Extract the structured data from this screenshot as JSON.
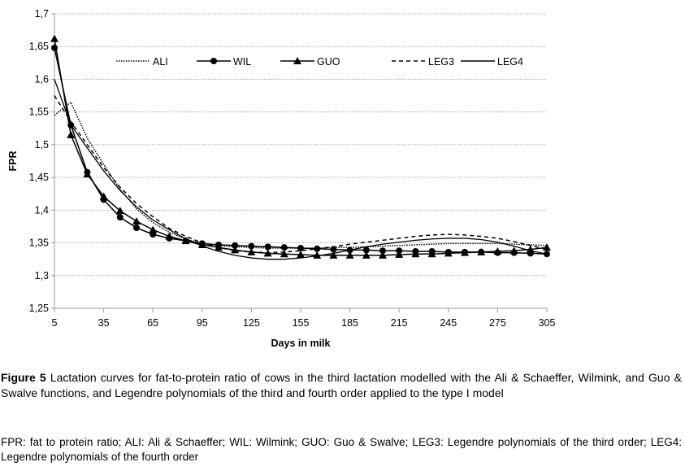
{
  "chart_data": {
    "type": "line",
    "xlabel": "Days in milk",
    "ylabel": "FPR",
    "xlim": [
      5,
      305
    ],
    "ylim": [
      1.25,
      1.7
    ],
    "x_ticks": [
      "5",
      "35",
      "65",
      "95",
      "125",
      "155",
      "185",
      "215",
      "245",
      "275",
      "305"
    ],
    "y_ticks": [
      "1,25",
      "1,3",
      "1,35",
      "1,4",
      "1,45",
      "1,5",
      "1,55",
      "1,6",
      "1,65",
      "1,7"
    ],
    "grid": "horizontal dotted",
    "legend_placement": "top",
    "x": [
      5,
      15,
      25,
      35,
      45,
      55,
      65,
      75,
      85,
      95,
      105,
      115,
      125,
      135,
      145,
      155,
      165,
      175,
      185,
      195,
      205,
      215,
      225,
      235,
      245,
      255,
      265,
      275,
      285,
      295,
      305
    ],
    "series": [
      {
        "name": "ALI",
        "style": "dotted",
        "marker": "none",
        "values": [
          1.545,
          1.565,
          1.51,
          1.47,
          1.432,
          1.402,
          1.381,
          1.366,
          1.356,
          1.349,
          1.346,
          1.344,
          1.343,
          1.342,
          1.342,
          1.342,
          1.342,
          1.343,
          1.343,
          1.344,
          1.345,
          1.346,
          1.347,
          1.348,
          1.349,
          1.349,
          1.349,
          1.349,
          1.348,
          1.347,
          1.346
        ]
      },
      {
        "name": "WIL",
        "style": "solid",
        "marker": "circle",
        "values": [
          1.648,
          1.53,
          1.458,
          1.416,
          1.389,
          1.373,
          1.363,
          1.357,
          1.353,
          1.349,
          1.347,
          1.346,
          1.345,
          1.344,
          1.343,
          1.342,
          1.341,
          1.34,
          1.339,
          1.339,
          1.338,
          1.338,
          1.337,
          1.337,
          1.336,
          1.336,
          1.336,
          1.335,
          1.335,
          1.334,
          1.333
        ]
      },
      {
        "name": "GUO",
        "style": "solid",
        "marker": "triangle",
        "values": [
          1.662,
          1.515,
          1.455,
          1.421,
          1.399,
          1.383,
          1.37,
          1.36,
          1.353,
          1.347,
          1.343,
          1.339,
          1.336,
          1.334,
          1.333,
          1.332,
          1.331,
          1.331,
          1.331,
          1.331,
          1.331,
          1.332,
          1.333,
          1.333,
          1.334,
          1.335,
          1.336,
          1.337,
          1.338,
          1.34,
          1.343
        ]
      },
      {
        "name": "LEG3",
        "style": "dashed",
        "marker": "none",
        "values": [
          1.575,
          1.535,
          1.5,
          1.465,
          1.435,
          1.41,
          1.39,
          1.372,
          1.36,
          1.35,
          1.343,
          1.338,
          1.336,
          1.335,
          1.336,
          1.338,
          1.341,
          1.344,
          1.348,
          1.351,
          1.354,
          1.357,
          1.36,
          1.362,
          1.363,
          1.362,
          1.36,
          1.357,
          1.352,
          1.346,
          1.34
        ]
      },
      {
        "name": "LEG4",
        "style": "solid",
        "marker": "none",
        "values": [
          1.6,
          1.53,
          1.495,
          1.46,
          1.43,
          1.405,
          1.385,
          1.37,
          1.356,
          1.345,
          1.337,
          1.331,
          1.327,
          1.325,
          1.325,
          1.327,
          1.33,
          1.334,
          1.339,
          1.344,
          1.348,
          1.351,
          1.354,
          1.356,
          1.357,
          1.357,
          1.355,
          1.351,
          1.345,
          1.338,
          1.333
        ]
      }
    ]
  },
  "caption": {
    "label": "Figure 5",
    "text": " Lactation curves for fat-to-protein ratio of cows in the third lactation modelled with the Ali & Schaeffer, Wilmink, and Guo & Swalve functions, and Legendre polynomials of the third and fourth order applied to the type I model",
    "footnote": "FPR: fat to protein ratio; ALI: Ali & Schaeffer; WIL: Wilmink; GUO: Guo & Swalve; LEG3: Legendre polynomials of the third order; LEG4: Legendre polynomials of the fourth order"
  }
}
